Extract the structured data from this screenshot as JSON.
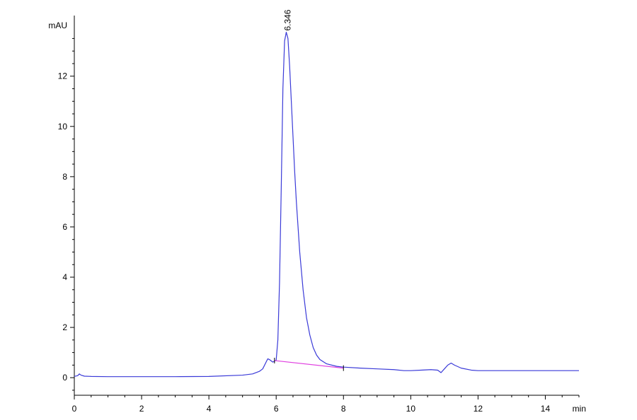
{
  "chart_data": {
    "type": "line",
    "title": "",
    "xlabel": "min",
    "ylabel": "mAU",
    "xlim": [
      0,
      15
    ],
    "ylim": [
      -0.7,
      14.3
    ],
    "x_ticks": [
      0,
      2,
      4,
      6,
      8,
      10,
      12,
      14
    ],
    "x_tick_labels": [
      "0",
      "2",
      "4",
      "6",
      "8",
      "10",
      "12",
      "14"
    ],
    "y_ticks": [
      0,
      2,
      4,
      6,
      8,
      10,
      12
    ],
    "y_tick_labels": [
      "0",
      "2",
      "4",
      "6",
      "8",
      "10",
      "12"
    ],
    "grid": false,
    "colors": {
      "signal": "#3a3ad8",
      "baseline": "#e040e0",
      "axis": "#000000"
    },
    "series": [
      {
        "x": [
          0.0,
          0.1,
          0.15,
          0.2,
          0.3,
          0.5,
          1.0,
          2.0,
          3.0,
          4.0,
          5.0,
          5.3,
          5.5,
          5.6,
          5.7,
          5.75,
          5.8,
          5.9,
          6.0,
          6.05,
          6.1,
          6.15,
          6.2,
          6.25,
          6.3,
          6.35,
          6.4,
          6.45,
          6.5,
          6.55,
          6.6,
          6.7,
          6.8,
          6.9,
          7.0,
          7.1,
          7.2,
          7.3,
          7.5,
          7.8,
          8.0,
          8.5,
          9.0,
          9.5,
          9.8,
          10.0,
          10.3,
          10.6,
          10.8,
          10.9,
          11.0,
          11.1,
          11.2,
          11.3,
          11.5,
          11.8,
          12.0,
          13.0,
          14.0,
          15.0
        ],
        "y": [
          0.05,
          0.08,
          0.15,
          0.1,
          0.06,
          0.05,
          0.04,
          0.04,
          0.04,
          0.05,
          0.1,
          0.15,
          0.25,
          0.35,
          0.62,
          0.75,
          0.72,
          0.62,
          0.7,
          1.5,
          3.8,
          7.5,
          11.5,
          13.4,
          13.75,
          13.5,
          12.4,
          11.0,
          9.6,
          8.2,
          7.0,
          5.0,
          3.5,
          2.4,
          1.7,
          1.2,
          0.9,
          0.72,
          0.55,
          0.45,
          0.42,
          0.38,
          0.35,
          0.32,
          0.28,
          0.28,
          0.3,
          0.32,
          0.3,
          0.2,
          0.35,
          0.5,
          0.58,
          0.5,
          0.38,
          0.3,
          0.28,
          0.28,
          0.28,
          0.28
        ]
      }
    ],
    "baseline": {
      "x": [
        5.95,
        8.0
      ],
      "y": [
        0.68,
        0.38
      ]
    },
    "annotations": [
      {
        "text": "6.346",
        "x": 6.346,
        "y": 13.75
      }
    ]
  }
}
